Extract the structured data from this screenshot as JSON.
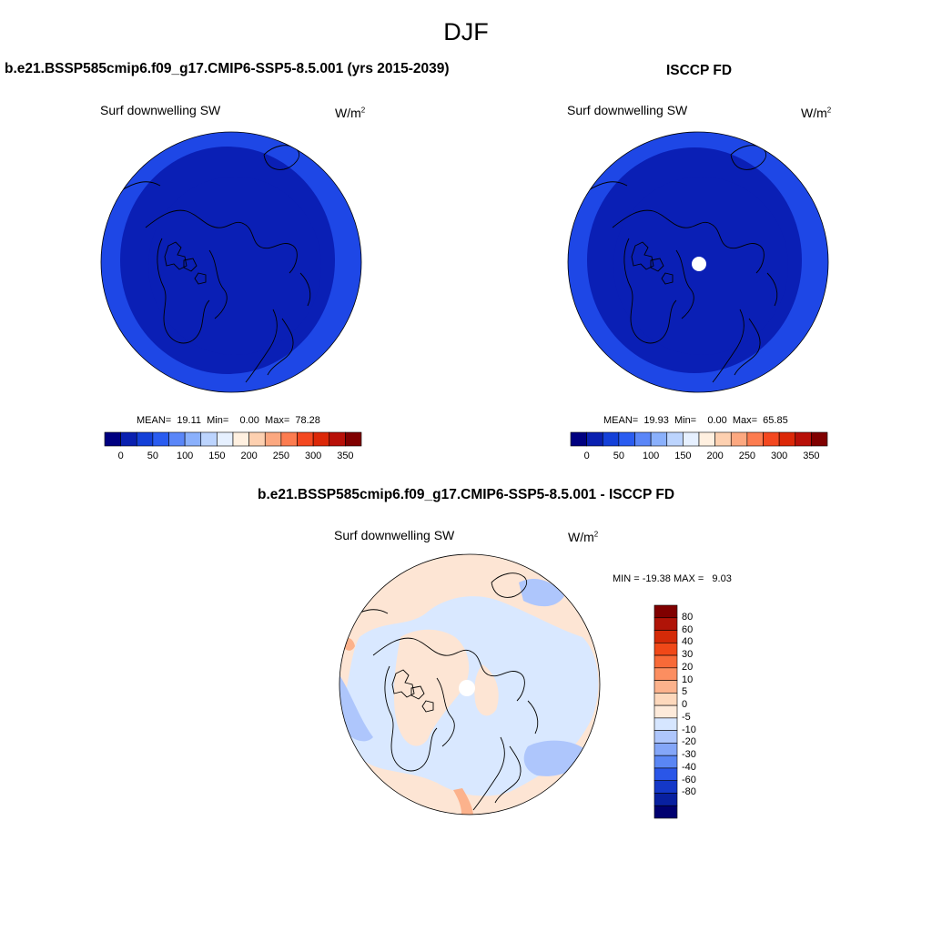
{
  "figure": {
    "title": "DJF",
    "colors": {
      "navy": "#0a0a7a",
      "dark_blue": "#0a1fb5",
      "mid_blue": "#1e47e6",
      "light_blue_fill": "#d9e8ff",
      "light_peach_fill": "#fde5d4",
      "coast": "#000000"
    }
  },
  "panels": [
    {
      "name": "model",
      "title": "b.e21.BSSP585cmip6.f09_g17.CMIP6-SSP5-8.5.001 (yrs 2015-2039)",
      "variable": "Surf downwelling SW",
      "units_base": "W/m",
      "units_exp": "2",
      "stats": "MEAN=  19.11  Min=    0.00  Max=  78.28",
      "colorbar": {
        "colors": [
          "#000080",
          "#0a20b0",
          "#1440d8",
          "#2a5cf0",
          "#5a86f8",
          "#8ab0fc",
          "#bcd4fe",
          "#e6f0ff",
          "#fff0e0",
          "#fdd0b0",
          "#fca880",
          "#fc7c50",
          "#f44820",
          "#dc2808",
          "#b81008",
          "#800000"
        ],
        "tick_labels": [
          "0",
          "50",
          "100",
          "150",
          "200",
          "250",
          "300",
          "350"
        ]
      }
    },
    {
      "name": "obs",
      "title": "ISCCP FD",
      "variable": "Surf downwelling SW",
      "units_base": "W/m",
      "units_exp": "2",
      "stats": "MEAN=  19.93  Min=    0.00  Max=  65.85",
      "colorbar": {
        "colors": [
          "#000080",
          "#0a20b0",
          "#1440d8",
          "#2a5cf0",
          "#5a86f8",
          "#8ab0fc",
          "#bcd4fe",
          "#e6f0ff",
          "#fff0e0",
          "#fdd0b0",
          "#fca880",
          "#fc7c50",
          "#f44820",
          "#dc2808",
          "#b81008",
          "#800000"
        ],
        "tick_labels": [
          "0",
          "50",
          "100",
          "150",
          "200",
          "250",
          "300",
          "350"
        ]
      }
    },
    {
      "name": "diff",
      "title": "b.e21.BSSP585cmip6.f09_g17.CMIP6-SSP5-8.5.001 - ISCCP FD",
      "variable": "Surf downwelling SW",
      "units_base": "W/m",
      "units_exp": "2",
      "stats": "MIN = -19.38 MAX =   9.03",
      "colorbar": {
        "colors": [
          "#800000",
          "#b01408",
          "#d42a08",
          "#f04818",
          "#f86a38",
          "#fc8e60",
          "#fcb28c",
          "#fdd8bc",
          "#fdeada",
          "#d6e6ff",
          "#aec6fc",
          "#84a6f8",
          "#5a86f4",
          "#2a56e8",
          "#1438c8",
          "#0820a0",
          "#000070"
        ],
        "tick_labels": [
          "80",
          "60",
          "40",
          "30",
          "20",
          "10",
          "5",
          "0",
          "-5",
          "-10",
          "-20",
          "-30",
          "-40",
          "-60",
          "-80"
        ]
      }
    }
  ]
}
